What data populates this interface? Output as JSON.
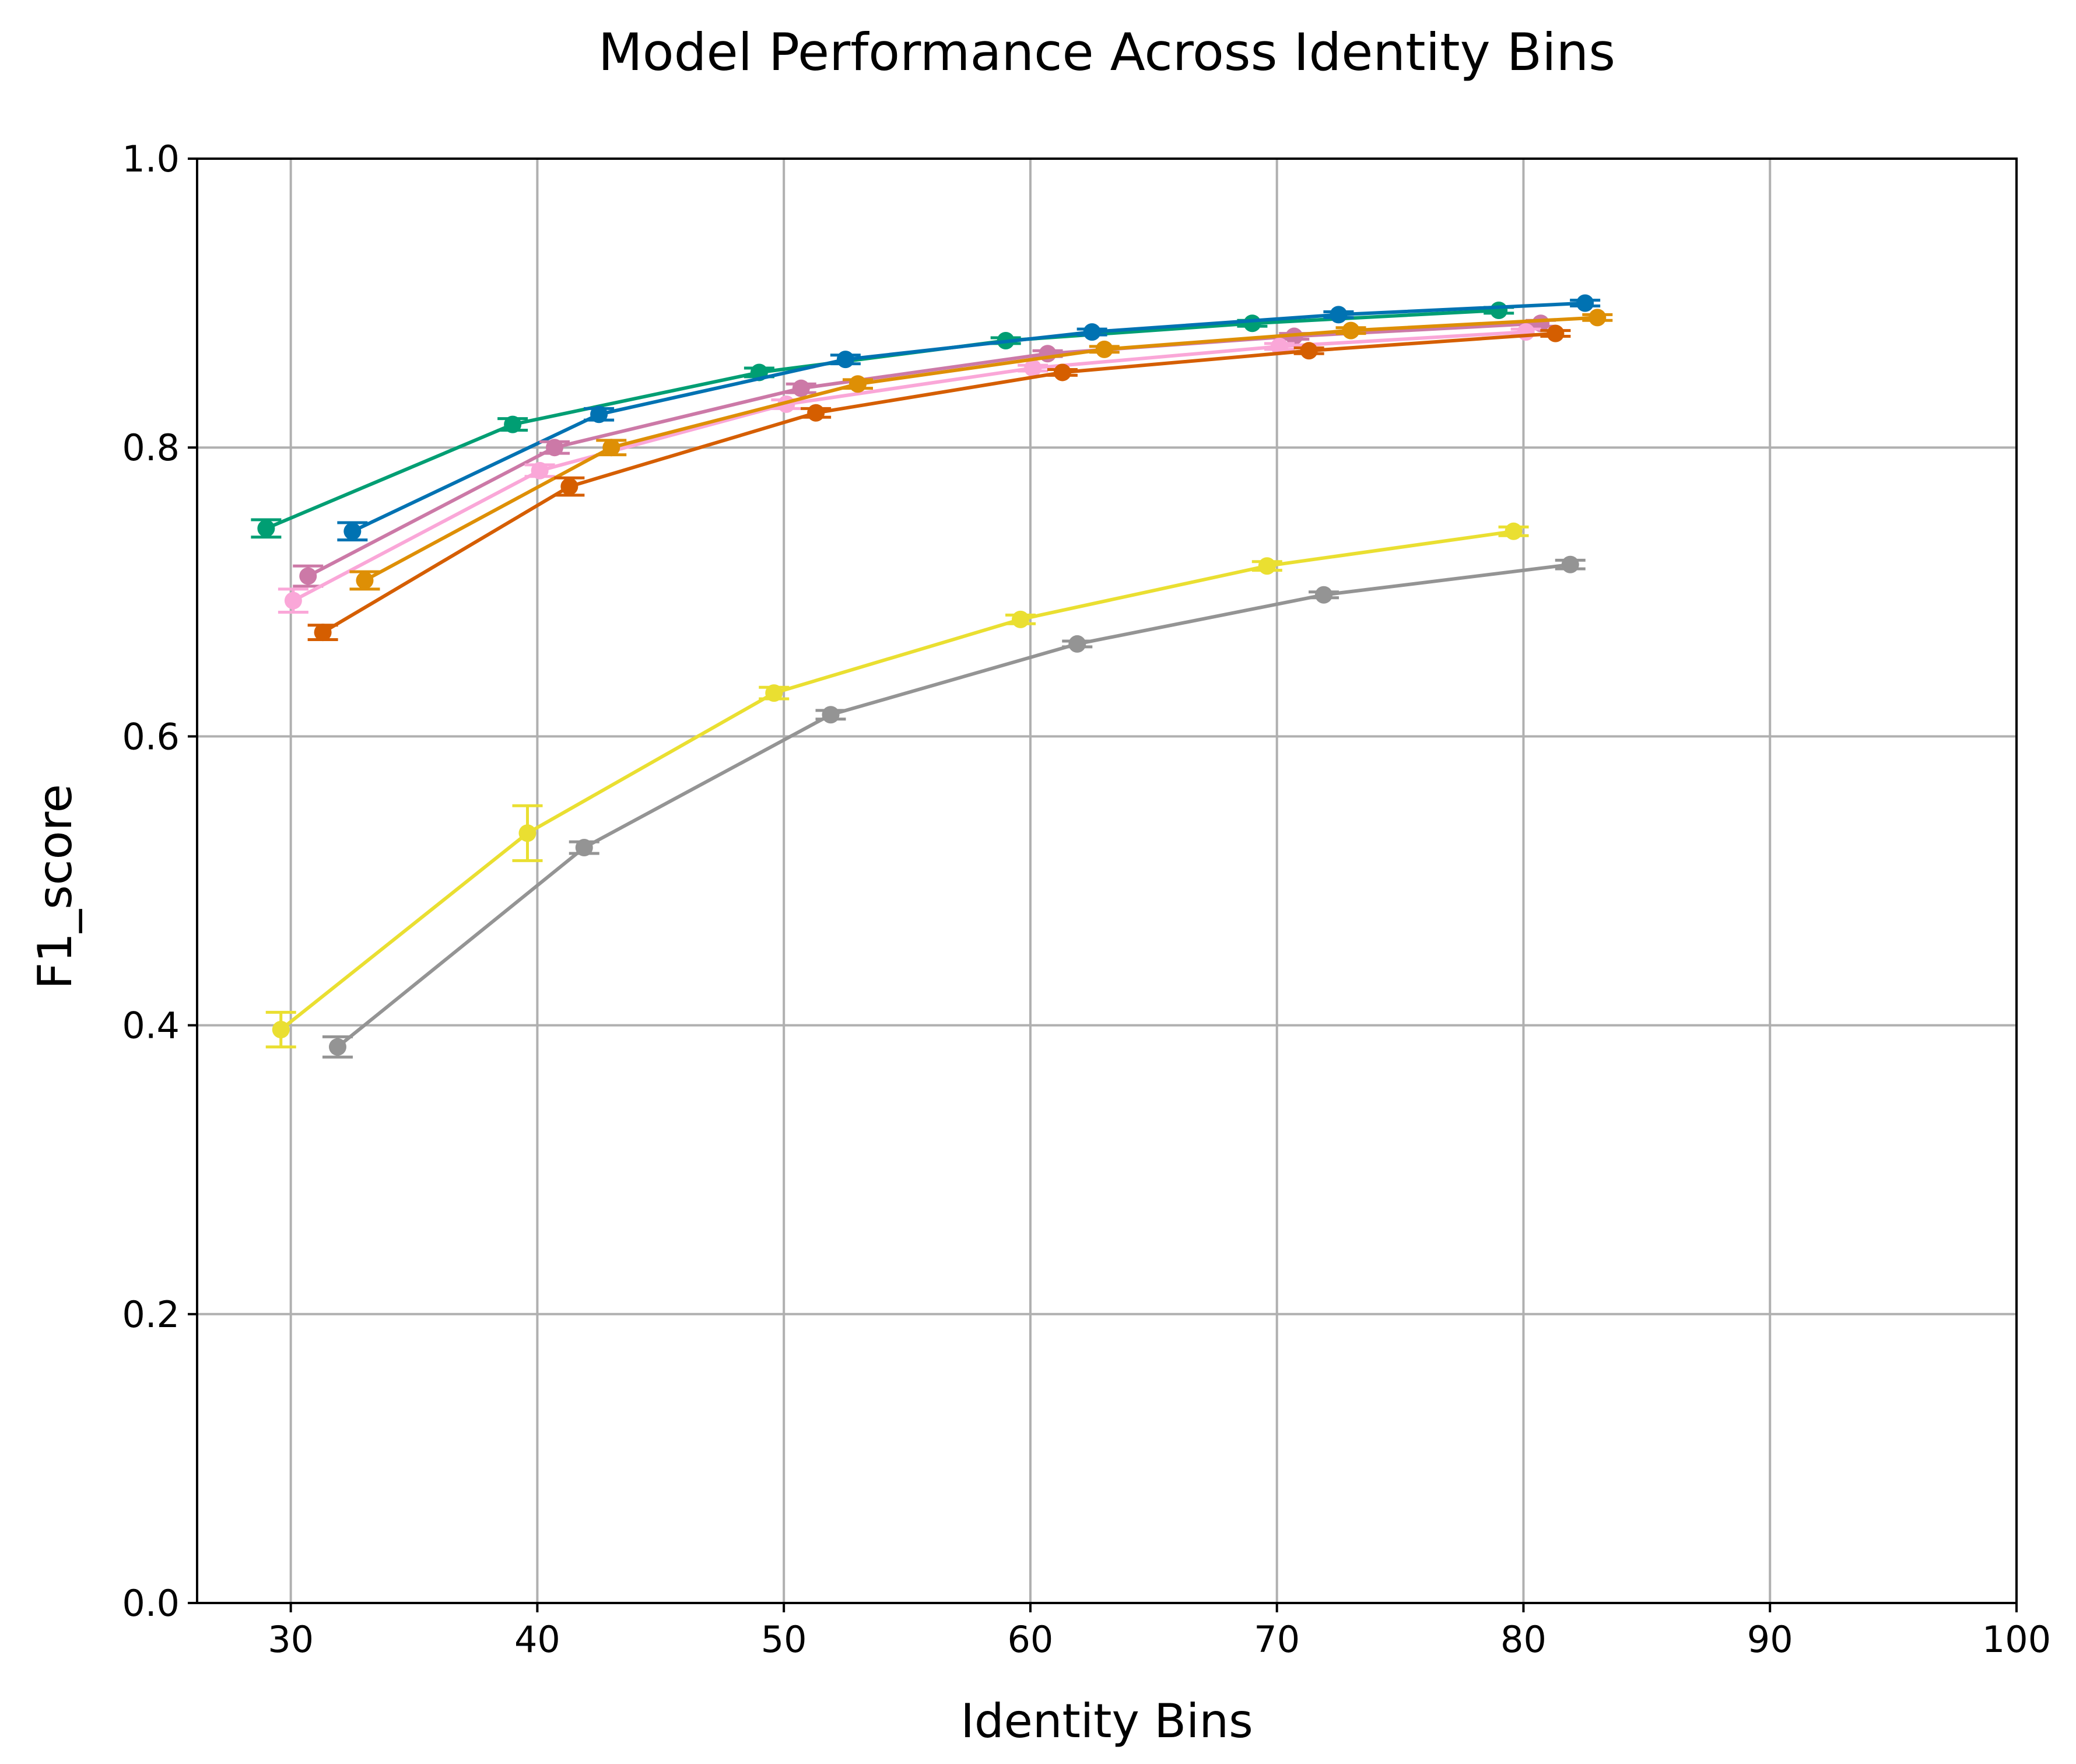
{
  "chart_data": {
    "type": "line",
    "title": "Model Performance Across Identity Bins",
    "xlabel": "Identity Bins",
    "ylabel": "F1_score",
    "xlim": [
      26.2,
      100
    ],
    "ylim": [
      0.0,
      1.0
    ],
    "xticks": [
      "30",
      "40",
      "50",
      "60",
      "70",
      "80",
      "90",
      "100"
    ],
    "yticks": [
      "0.0",
      "0.2",
      "0.4",
      "0.6",
      "0.8",
      "1.0"
    ],
    "grid": true,
    "legend": "none",
    "series": [
      {
        "color": "#009E73",
        "x": [
          29.0,
          39.0,
          49.0,
          59.0,
          69.0,
          79.0
        ],
        "y": [
          0.744,
          0.816,
          0.852,
          0.874,
          0.886,
          0.895
        ],
        "err": [
          0.006,
          0.004,
          0.003,
          0.002,
          0.002,
          0.002
        ]
      },
      {
        "color": "#0072B2",
        "x": [
          32.5,
          42.5,
          52.5,
          62.5,
          72.5,
          82.5
        ],
        "y": [
          0.742,
          0.823,
          0.861,
          0.88,
          0.892,
          0.9
        ],
        "err": [
          0.006,
          0.004,
          0.003,
          0.002,
          0.002,
          0.002
        ]
      },
      {
        "color": "#CC79A7",
        "x": [
          30.7,
          40.7,
          50.7,
          60.7,
          70.7,
          80.7
        ],
        "y": [
          0.711,
          0.8,
          0.841,
          0.865,
          0.877,
          0.886
        ],
        "err": [
          0.007,
          0.004,
          0.003,
          0.002,
          0.002,
          0.002
        ]
      },
      {
        "color": "#FAA7D8",
        "x": [
          30.1,
          40.1,
          50.1,
          60.1,
          70.1,
          80.1
        ],
        "y": [
          0.694,
          0.784,
          0.83,
          0.855,
          0.87,
          0.88
        ],
        "err": [
          0.008,
          0.004,
          0.003,
          0.002,
          0.002,
          0.002
        ]
      },
      {
        "color": "#DE8F05",
        "x": [
          33.0,
          43.0,
          53.0,
          63.0,
          73.0,
          83.0
        ],
        "y": [
          0.708,
          0.8,
          0.844,
          0.868,
          0.881,
          0.89
        ],
        "err": [
          0.006,
          0.005,
          0.003,
          0.002,
          0.002,
          0.002
        ]
      },
      {
        "color": "#D55E00",
        "x": [
          31.3,
          41.3,
          51.3,
          61.3,
          71.3,
          81.3
        ],
        "y": [
          0.672,
          0.773,
          0.824,
          0.852,
          0.867,
          0.879
        ],
        "err": [
          0.005,
          0.006,
          0.003,
          0.002,
          0.002,
          0.002
        ]
      },
      {
        "color": "#EADF31",
        "x": [
          29.6,
          39.6,
          49.6,
          59.6,
          69.6,
          79.6
        ],
        "y": [
          0.397,
          0.533,
          0.63,
          0.681,
          0.718,
          0.742
        ],
        "err": [
          0.012,
          0.019,
          0.004,
          0.003,
          0.003,
          0.003
        ]
      },
      {
        "color": "#949494",
        "x": [
          31.9,
          41.9,
          51.9,
          61.9,
          71.9,
          81.9
        ],
        "y": [
          0.385,
          0.523,
          0.615,
          0.664,
          0.698,
          0.719
        ],
        "err": [
          0.007,
          0.004,
          0.003,
          0.002,
          0.002,
          0.003
        ]
      }
    ]
  }
}
